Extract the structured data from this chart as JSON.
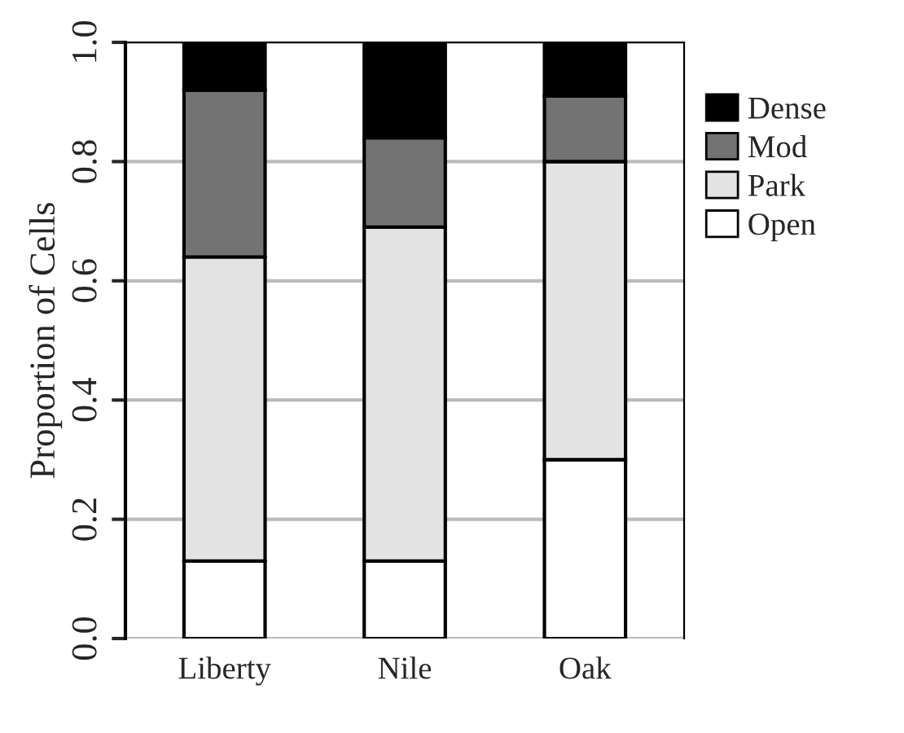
{
  "chart_data": {
    "type": "bar",
    "stacked": true,
    "ylabel": "Proportion of Cells",
    "categories": [
      "Liberty",
      "Nile",
      "Oak"
    ],
    "series": [
      {
        "name": "Open",
        "color": "#ffffff",
        "values": [
          0.13,
          0.13,
          0.3
        ]
      },
      {
        "name": "Park",
        "color": "#e3e3e3",
        "values": [
          0.51,
          0.56,
          0.5
        ]
      },
      {
        "name": "Mod",
        "color": "#737373",
        "values": [
          0.28,
          0.15,
          0.11
        ]
      },
      {
        "name": "Dense",
        "color": "#000000",
        "values": [
          0.08,
          0.16,
          0.09
        ]
      }
    ],
    "ylim": [
      0,
      1
    ],
    "yticks": [
      {
        "value": 0,
        "label": "0.0"
      },
      {
        "value": 0.2,
        "label": "0.2"
      },
      {
        "value": 0.4,
        "label": "0.4"
      },
      {
        "value": 0.6,
        "label": "0.6"
      },
      {
        "value": 0.8,
        "label": "0.8"
      },
      {
        "value": 1,
        "label": "1.0"
      }
    ],
    "grid": "y",
    "legend": "right"
  }
}
